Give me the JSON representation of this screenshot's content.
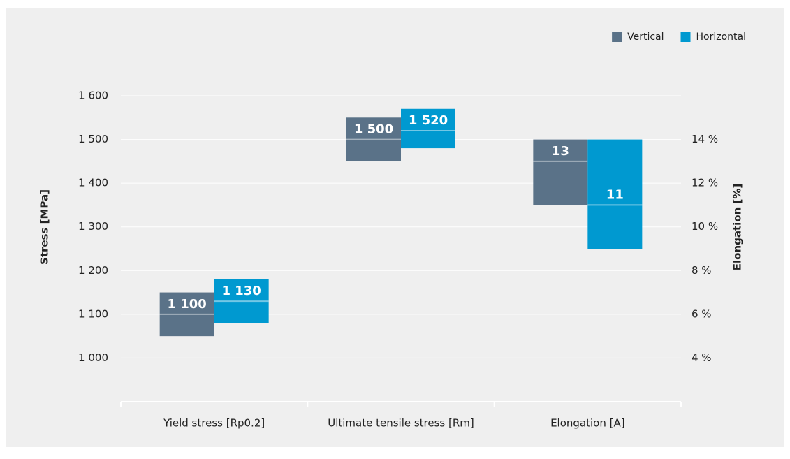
{
  "chart_data": {
    "type": "floating-bar",
    "categories": [
      "Yield stress [Rp0.2]",
      "Ultimate tensile stress [Rm]",
      "Elongation [A]"
    ],
    "category_axes": [
      "y",
      "y",
      "y2"
    ],
    "series": [
      {
        "name": "Vertical",
        "color": "#5a7288",
        "lows": [
          1050,
          1450,
          11
        ],
        "highs": [
          1150,
          1550,
          14
        ],
        "values": [
          1100,
          1500,
          13
        ],
        "value_labels": [
          "1 100",
          "1 500",
          "13"
        ]
      },
      {
        "name": "Horizontal",
        "color": "#0099d0",
        "lows": [
          1080,
          1480,
          9
        ],
        "highs": [
          1180,
          1570,
          14
        ],
        "values": [
          1130,
          1520,
          11
        ],
        "value_labels": [
          "1 130",
          "1 520",
          "11"
        ]
      }
    ],
    "ylabel": "Stress [MPa]",
    "y2label": "Elongation [%]",
    "ylim": [
      900,
      1600
    ],
    "yticks": [
      {
        "value": 1000,
        "label": "1 000"
      },
      {
        "value": 1100,
        "label": "1 100"
      },
      {
        "value": 1200,
        "label": "1 200"
      },
      {
        "value": 1300,
        "label": "1 300"
      },
      {
        "value": 1400,
        "label": "1 400"
      },
      {
        "value": 1500,
        "label": "1 500"
      },
      {
        "value": 1600,
        "label": "1 600"
      }
    ],
    "y2lim": [
      2,
      16
    ],
    "y2ticks": [
      {
        "value": 4,
        "label": "4 %"
      },
      {
        "value": 6,
        "label": "6 %"
      },
      {
        "value": 8,
        "label": "8 %"
      },
      {
        "value": 10,
        "label": "10 %"
      },
      {
        "value": 12,
        "label": "12 %"
      },
      {
        "value": 14,
        "label": "14 %"
      }
    ],
    "grid": true,
    "legend": "top-right"
  }
}
